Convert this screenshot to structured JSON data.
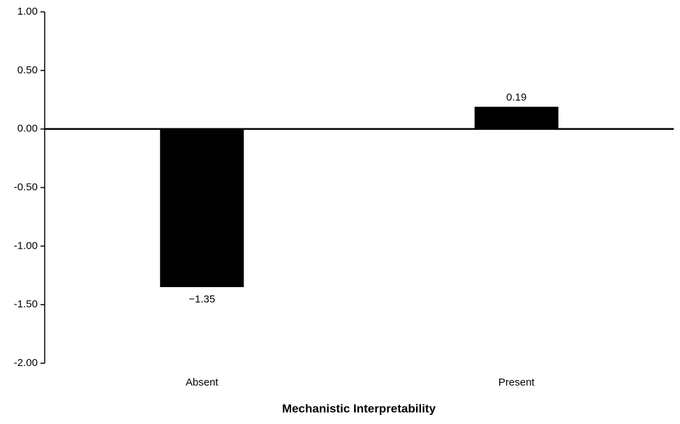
{
  "chart_data": {
    "type": "bar",
    "x_label": "Mechanistic Interpretability",
    "categories": [
      "Absent",
      "Present"
    ],
    "values": [
      -1.35,
      0.19
    ],
    "value_labels": [
      "−1.35",
      "0.19"
    ],
    "color": "#000000",
    "ylim": [
      -2,
      1
    ],
    "yticks": [
      {
        "value": 1,
        "label": "1.00"
      },
      {
        "value": 0.5,
        "label": "0.50"
      },
      {
        "value": 0,
        "label": "0.00"
      },
      {
        "value": -0.5,
        "label": "-0.50"
      },
      {
        "value": -1,
        "label": "-1.00"
      },
      {
        "value": -1.5,
        "label": "-1.50"
      },
      {
        "value": -2,
        "label": "-2.00"
      }
    ]
  }
}
